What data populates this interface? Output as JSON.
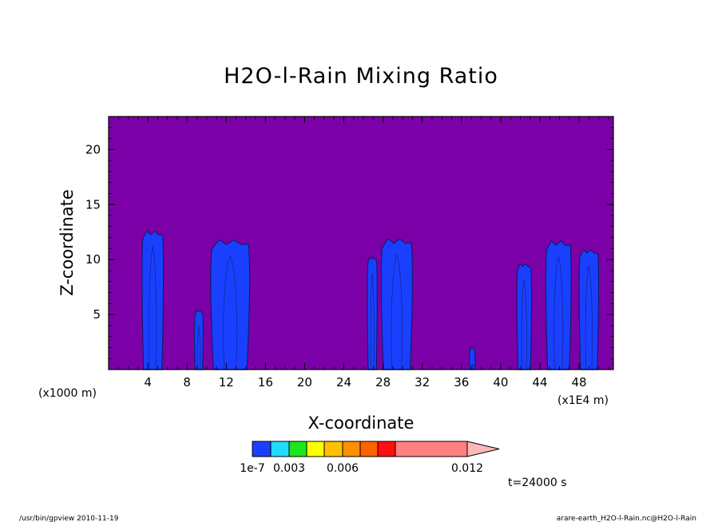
{
  "chart_data": {
    "type": "contour",
    "title": "H2O-l-Rain Mixing Ratio",
    "xlabel": "X-coordinate",
    "ylabel": "Z-coordinate",
    "x_unit_left": "(x1000 m)",
    "x_unit_right": "(x1E4 m)",
    "xlim": [
      0,
      51.5
    ],
    "ylim": [
      0,
      23
    ],
    "xticks": [
      4,
      8,
      12,
      16,
      20,
      24,
      28,
      32,
      36,
      40,
      44,
      48
    ],
    "yticks": [
      5,
      10,
      15,
      20
    ],
    "background_color": "#7c00a8",
    "contour_edge_color": "#0d1e6e",
    "cells": [
      {
        "x_center": 4.5,
        "x_width": 2.2,
        "z_top": 12.6,
        "color": "#1a40ff"
      },
      {
        "x_center": 9.2,
        "x_width": 0.9,
        "z_top": 5.4,
        "color": "#1a40ff"
      },
      {
        "x_center": 12.4,
        "x_width": 4.0,
        "z_top": 11.8,
        "color": "#1a40ff"
      },
      {
        "x_center": 26.9,
        "x_width": 1.0,
        "z_top": 10.2,
        "color": "#1a40ff"
      },
      {
        "x_center": 29.4,
        "x_width": 3.2,
        "z_top": 11.9,
        "color": "#1a40ff"
      },
      {
        "x_center": 37.1,
        "x_width": 0.6,
        "z_top": 2.0,
        "color": "#1a40ff"
      },
      {
        "x_center": 42.4,
        "x_width": 1.5,
        "z_top": 9.6,
        "color": "#1a40ff"
      },
      {
        "x_center": 45.9,
        "x_width": 2.6,
        "z_top": 11.7,
        "color": "#1a40ff"
      },
      {
        "x_center": 49.0,
        "x_width": 2.0,
        "z_top": 10.9,
        "color": "#1a40ff"
      }
    ],
    "colorbar": {
      "colors": [
        "#1a40ff",
        "#22dcff",
        "#1de61d",
        "#ffff00",
        "#ffc000",
        "#ff9000",
        "#ff6000",
        "#ff1010",
        "#ff8080"
      ],
      "extend_color": "#ffb8b8",
      "tick_labels": [
        "1e-7",
        "0.003",
        "0.006",
        "0.012"
      ]
    },
    "time_label": "t=24000 s"
  },
  "footer": {
    "left": "/usr/bin/gpview   2010-11-19",
    "right": "arare-earth_H2O-l-Rain.nc@H2O-l-Rain"
  }
}
